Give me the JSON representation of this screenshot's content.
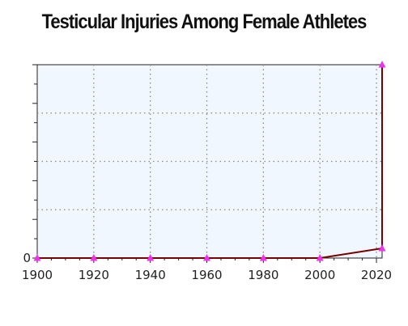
{
  "chart_data": {
    "type": "line",
    "title": "Testicular Injuries Among Female Athletes",
    "xlabel": "",
    "ylabel": "",
    "x": [
      1900,
      1920,
      1940,
      1960,
      1980,
      2000,
      2022,
      2022
    ],
    "series": [
      {
        "values": [
          0,
          0,
          0,
          0,
          0,
          0,
          0.05,
          1
        ]
      }
    ],
    "xlim": [
      1900,
      2022
    ],
    "ylim": [
      0,
      1
    ],
    "x_ticks": [
      1900,
      1920,
      1940,
      1960,
      1980,
      2000,
      2020
    ],
    "y_tick_labels": [
      "0"
    ],
    "grid": true,
    "legend": "none",
    "colors": {
      "line": "#7a0000",
      "marker": "#ee33ee",
      "plot_bg": "#f0f7ff",
      "grid": "#888888",
      "axis": "#222222"
    }
  }
}
